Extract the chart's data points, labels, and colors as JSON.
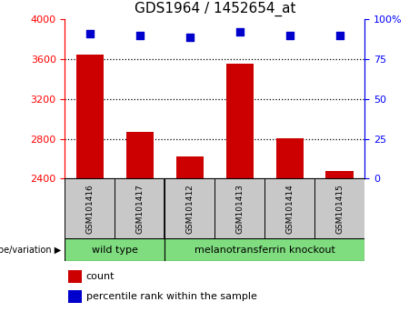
{
  "title": "GDS1964 / 1452654_at",
  "samples": [
    "GSM101416",
    "GSM101417",
    "GSM101412",
    "GSM101413",
    "GSM101414",
    "GSM101415"
  ],
  "counts": [
    3650,
    2870,
    2620,
    3555,
    2810,
    2475
  ],
  "percentiles": [
    91,
    90,
    89,
    92,
    90,
    90
  ],
  "ylim_left": [
    2400,
    4000
  ],
  "ylim_right": [
    0,
    100
  ],
  "yticks_left": [
    2400,
    2800,
    3200,
    3600,
    4000
  ],
  "yticks_right": [
    0,
    25,
    50,
    75,
    100
  ],
  "ytick_labels_right": [
    "0",
    "25",
    "50",
    "75",
    "100%"
  ],
  "bar_color": "#cc0000",
  "dot_color": "#0000cc",
  "group1_label": "wild type",
  "group2_label": "melanotransferrin knockout",
  "group_bg_color": "#7fdd7f",
  "sample_bg_color": "#c8c8c8",
  "genotype_label": "genotype/variation",
  "legend_count": "count",
  "legend_percentile": "percentile rank within the sample",
  "title_fontsize": 11,
  "tick_fontsize": 8,
  "bar_width": 0.55,
  "dot_size": 28,
  "gridline_ticks": [
    2800,
    3200,
    3600
  ]
}
